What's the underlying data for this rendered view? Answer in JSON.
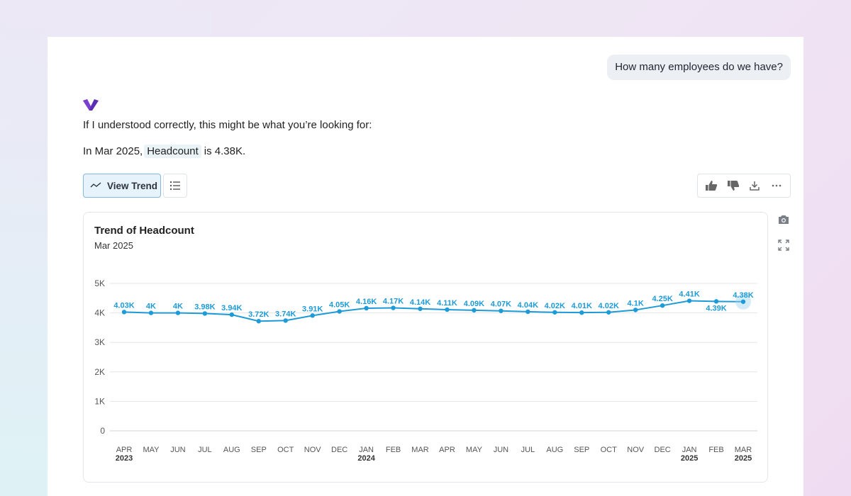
{
  "user_message": "How many employees do we have?",
  "intro_text": "If I understood correctly, this might be what you’re looking for:",
  "answer": {
    "prefix": "In Mar 2025,",
    "metric": "Headcount",
    "suffix": "is 4.38K."
  },
  "toolbar": {
    "view_trend_label": "View Trend"
  },
  "icons": {
    "logo": "brand-logo-icon",
    "view_trend": "trend-line-icon",
    "list": "list-icon",
    "thumbs_up": "thumbs-up-icon",
    "thumbs_down": "thumbs-down-icon",
    "download": "download-icon",
    "more": "more-horizontal-icon",
    "camera": "camera-icon",
    "expand": "expand-icon"
  },
  "colors": {
    "brand_purple": "#5b2fb3",
    "line": "#1e9bd7",
    "label": "#1e9bd7",
    "grid": "#e3e6ea",
    "highlight": "#9fd3f0"
  },
  "chart_data": {
    "type": "line",
    "title": "Trend of Headcount",
    "subtitle": "Mar 2025",
    "ylim": [
      0,
      5000
    ],
    "yticks": [
      0,
      1000,
      2000,
      3000,
      4000,
      5000
    ],
    "ytick_labels": [
      "0",
      "1K",
      "2K",
      "3K",
      "4K",
      "5K"
    ],
    "grid": true,
    "categories": [
      {
        "month": "APR",
        "year": "2023"
      },
      {
        "month": "MAY",
        "year": ""
      },
      {
        "month": "JUN",
        "year": ""
      },
      {
        "month": "JUL",
        "year": ""
      },
      {
        "month": "AUG",
        "year": ""
      },
      {
        "month": "SEP",
        "year": ""
      },
      {
        "month": "OCT",
        "year": ""
      },
      {
        "month": "NOV",
        "year": ""
      },
      {
        "month": "DEC",
        "year": ""
      },
      {
        "month": "JAN",
        "year": "2024"
      },
      {
        "month": "FEB",
        "year": ""
      },
      {
        "month": "MAR",
        "year": ""
      },
      {
        "month": "APR",
        "year": ""
      },
      {
        "month": "MAY",
        "year": ""
      },
      {
        "month": "JUN",
        "year": ""
      },
      {
        "month": "JUL",
        "year": ""
      },
      {
        "month": "AUG",
        "year": ""
      },
      {
        "month": "SEP",
        "year": ""
      },
      {
        "month": "OCT",
        "year": ""
      },
      {
        "month": "NOV",
        "year": ""
      },
      {
        "month": "DEC",
        "year": ""
      },
      {
        "month": "JAN",
        "year": "2025"
      },
      {
        "month": "FEB",
        "year": ""
      },
      {
        "month": "MAR",
        "year": "2025"
      }
    ],
    "values": [
      4030,
      4000,
      4000,
      3980,
      3940,
      3720,
      3740,
      3910,
      4050,
      4160,
      4170,
      4140,
      4110,
      4090,
      4070,
      4040,
      4020,
      4010,
      4020,
      4100,
      4250,
      4410,
      4390,
      4380
    ],
    "data_labels": [
      "4.03K",
      "4K",
      "4K",
      "3.98K",
      "3.94K",
      "3.72K",
      "3.74K",
      "3.91K",
      "4.05K",
      "4.16K",
      "4.17K",
      "4.14K",
      "4.11K",
      "4.09K",
      "4.07K",
      "4.04K",
      "4.02K",
      "4.01K",
      "4.02K",
      "4.1K",
      "4.25K",
      "4.41K",
      "4.39K",
      "4.38K"
    ],
    "highlight_index": 23
  }
}
